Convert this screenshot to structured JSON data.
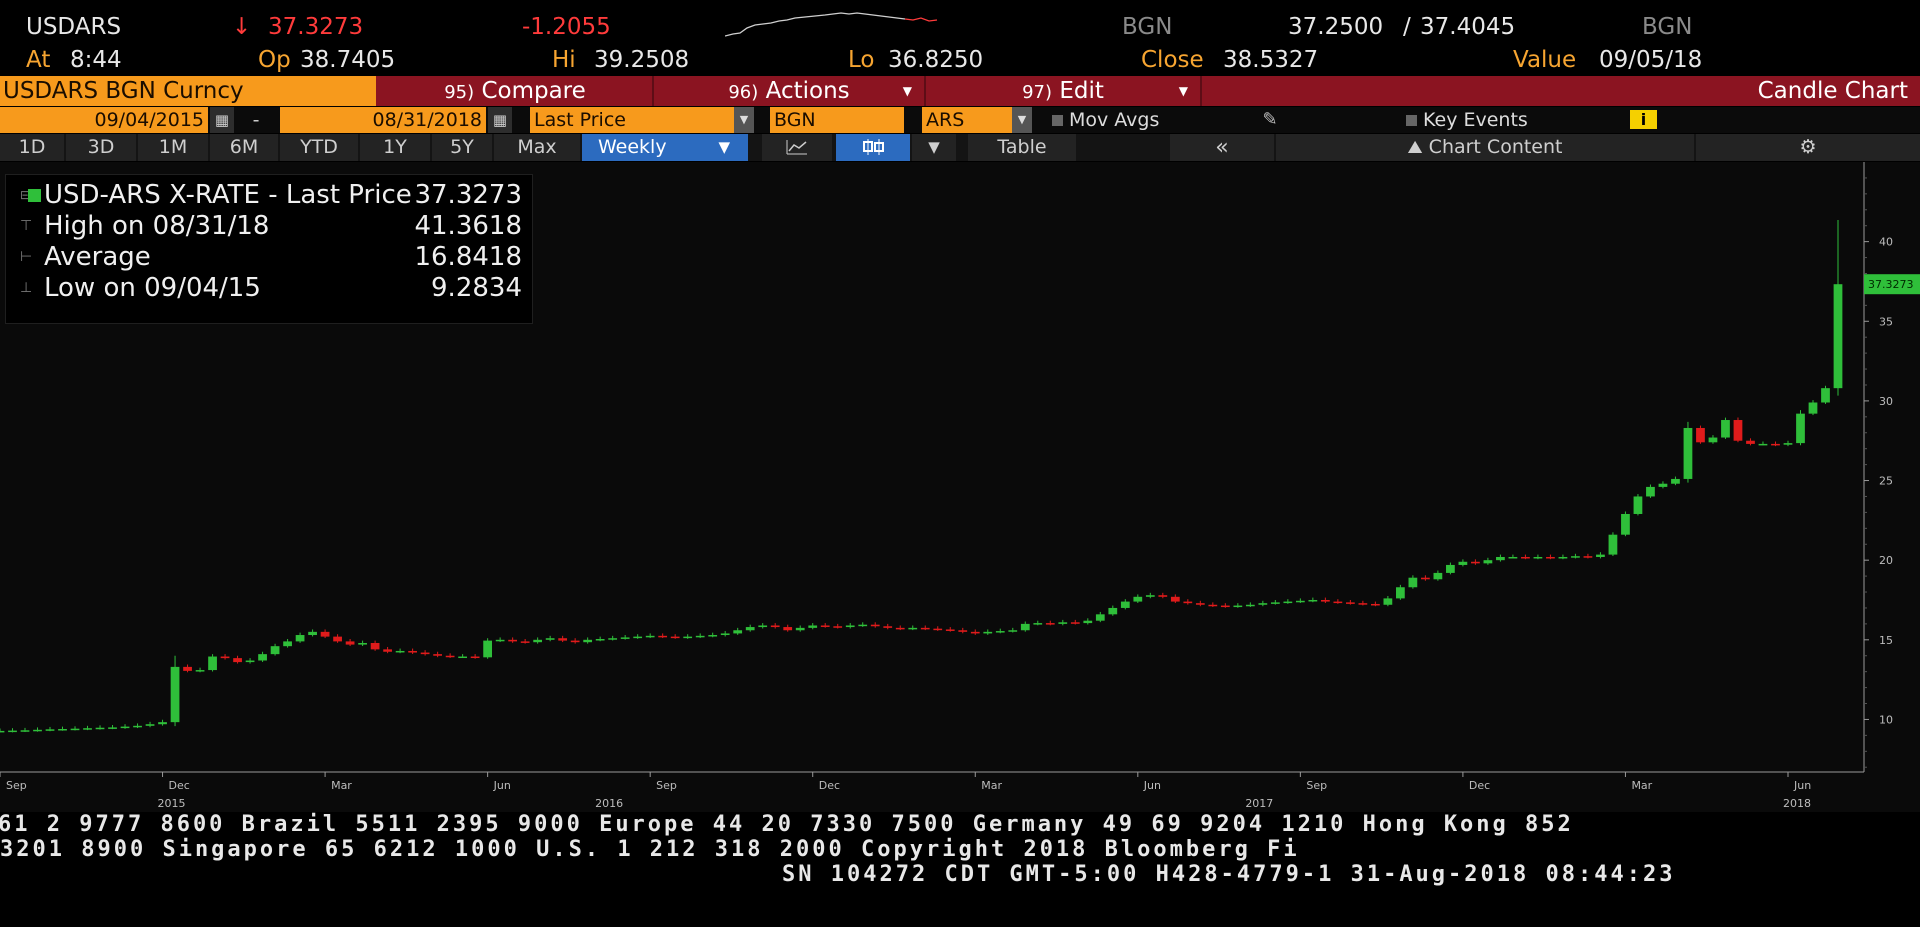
{
  "quote": {
    "ticker": "USDARS",
    "arrow": "↓",
    "last": "37.3273",
    "change": "-1.2055",
    "source": "BGN",
    "bid": "37.2500",
    "separator": "/",
    "ask": "37.4045",
    "source2": "BGN",
    "at_label": "At",
    "time": "8:44",
    "open_label": "Op",
    "open": "38.7405",
    "high_label": "Hi",
    "high": "39.2508",
    "low_label": "Lo",
    "low": "36.8250",
    "close_label": "Close",
    "close": "38.5327",
    "value_label": "Value",
    "value_date": "09/05/18"
  },
  "function_bar": {
    "security": "USDARS BGN Curncy",
    "compare_num": "95)",
    "compare": "Compare",
    "actions_num": "96)",
    "actions": "Actions",
    "edit_num": "97)",
    "edit": "Edit",
    "chart_name": "Candle Chart"
  },
  "params": {
    "start_date": "09/04/2015",
    "dash": "-",
    "end_date": "08/31/2018",
    "field": "Last Price",
    "source": "BGN",
    "currency": "ARS",
    "mov_avgs": "Mov Avgs",
    "key_events": "Key Events",
    "info": "i"
  },
  "periods": {
    "items": [
      "1D",
      "3D",
      "1M",
      "6M",
      "YTD",
      "1Y",
      "5Y",
      "Max"
    ],
    "frequency": "Weekly",
    "table": "Table",
    "collapse": "«",
    "chart_content": "Chart Content",
    "settings": "⚙"
  },
  "legend": {
    "title": "USD-ARS X-RATE - Last Price",
    "last": "37.3273",
    "high_label": "High on 08/31/18",
    "high": "41.3618",
    "avg_label": "Average",
    "avg": "16.8418",
    "low_label": "Low on 09/04/15",
    "low": "9.2834"
  },
  "chart_data": {
    "type": "candlestick",
    "title": "USD-ARS X-RATE - Last Price",
    "frequency": "Weekly",
    "ylim": [
      6.7,
      45
    ],
    "y_ticks": [
      10,
      15,
      20,
      25,
      30,
      35,
      40
    ],
    "last_price_label": "37.3273",
    "colors": {
      "up": "#2fbf3a",
      "down": "#e01b1b",
      "axis": "#9a9a9a",
      "background": "#0a0a0a"
    },
    "x_ticks": [
      {
        "label": "Sep",
        "week": 0
      },
      {
        "label": "Dec",
        "week": 13
      },
      {
        "label": "Mar",
        "week": 26
      },
      {
        "label": "Jun",
        "week": 39
      },
      {
        "label": "Sep",
        "week": 52
      },
      {
        "label": "Dec",
        "week": 65
      },
      {
        "label": "Mar",
        "week": 78
      },
      {
        "label": "Jun",
        "week": 91
      },
      {
        "label": "Sep",
        "week": 104
      },
      {
        "label": "Dec",
        "week": 117
      },
      {
        "label": "Mar",
        "week": 130
      },
      {
        "label": "Jun",
        "week": 143
      }
    ],
    "year_labels": [
      {
        "label": "2015",
        "week": 7
      },
      {
        "label": "2016",
        "week": 42
      },
      {
        "label": "2017",
        "week": 94
      },
      {
        "label": "2018",
        "week": 137
      }
    ],
    "close": [
      9.28,
      9.3,
      9.32,
      9.35,
      9.38,
      9.4,
      9.42,
      9.45,
      9.48,
      9.5,
      9.55,
      9.6,
      9.7,
      9.83,
      13.3,
      13.05,
      13.1,
      13.95,
      13.85,
      13.6,
      13.7,
      14.1,
      14.6,
      14.9,
      15.3,
      15.5,
      15.2,
      14.9,
      14.7,
      14.8,
      14.4,
      14.25,
      14.3,
      14.2,
      14.1,
      14.0,
      13.95,
      13.95,
      13.9,
      14.95,
      15.0,
      14.9,
      14.85,
      15.0,
      15.1,
      14.95,
      14.85,
      15.0,
      15.05,
      15.1,
      15.15,
      15.2,
      15.25,
      15.2,
      15.15,
      15.2,
      15.25,
      15.3,
      15.4,
      15.6,
      15.8,
      15.9,
      15.8,
      15.6,
      15.75,
      15.9,
      15.85,
      15.8,
      15.9,
      15.95,
      15.85,
      15.75,
      15.7,
      15.75,
      15.7,
      15.65,
      15.6,
      15.5,
      15.4,
      15.5,
      15.55,
      15.6,
      16.0,
      16.05,
      16.0,
      16.1,
      16.05,
      16.2,
      16.6,
      17.0,
      17.4,
      17.7,
      17.8,
      17.7,
      17.4,
      17.3,
      17.2,
      17.15,
      17.1,
      17.15,
      17.2,
      17.3,
      17.35,
      17.4,
      17.45,
      17.5,
      17.4,
      17.35,
      17.3,
      17.25,
      17.2,
      17.6,
      18.3,
      18.9,
      18.8,
      19.2,
      19.7,
      19.9,
      19.8,
      20.0,
      20.2,
      20.2,
      20.15,
      20.2,
      20.15,
      20.2,
      20.25,
      20.2,
      20.35,
      21.6,
      22.9,
      24.0,
      24.6,
      24.8,
      25.1,
      28.3,
      27.4,
      27.7,
      28.8,
      27.5,
      27.3,
      27.3,
      27.25,
      27.35,
      29.2,
      29.9,
      30.8,
      37.3273
    ]
  },
  "footer": {
    "line1": "61 2 9777 8600 Brazil 5511 2395 9000 Europe 44 20 7330 7500 Germany 49 69 9204 1210 Hong Kong 852",
    "line2": " 3201 8900       Singapore 65 6212 1000       U.S. 1 212 318 2000       Copyright 2018 Bloomberg Fi",
    "line3": "SN 104272 CDT  GMT-5:00 H428-4779-1 31-Aug-2018 08:44:23"
  }
}
